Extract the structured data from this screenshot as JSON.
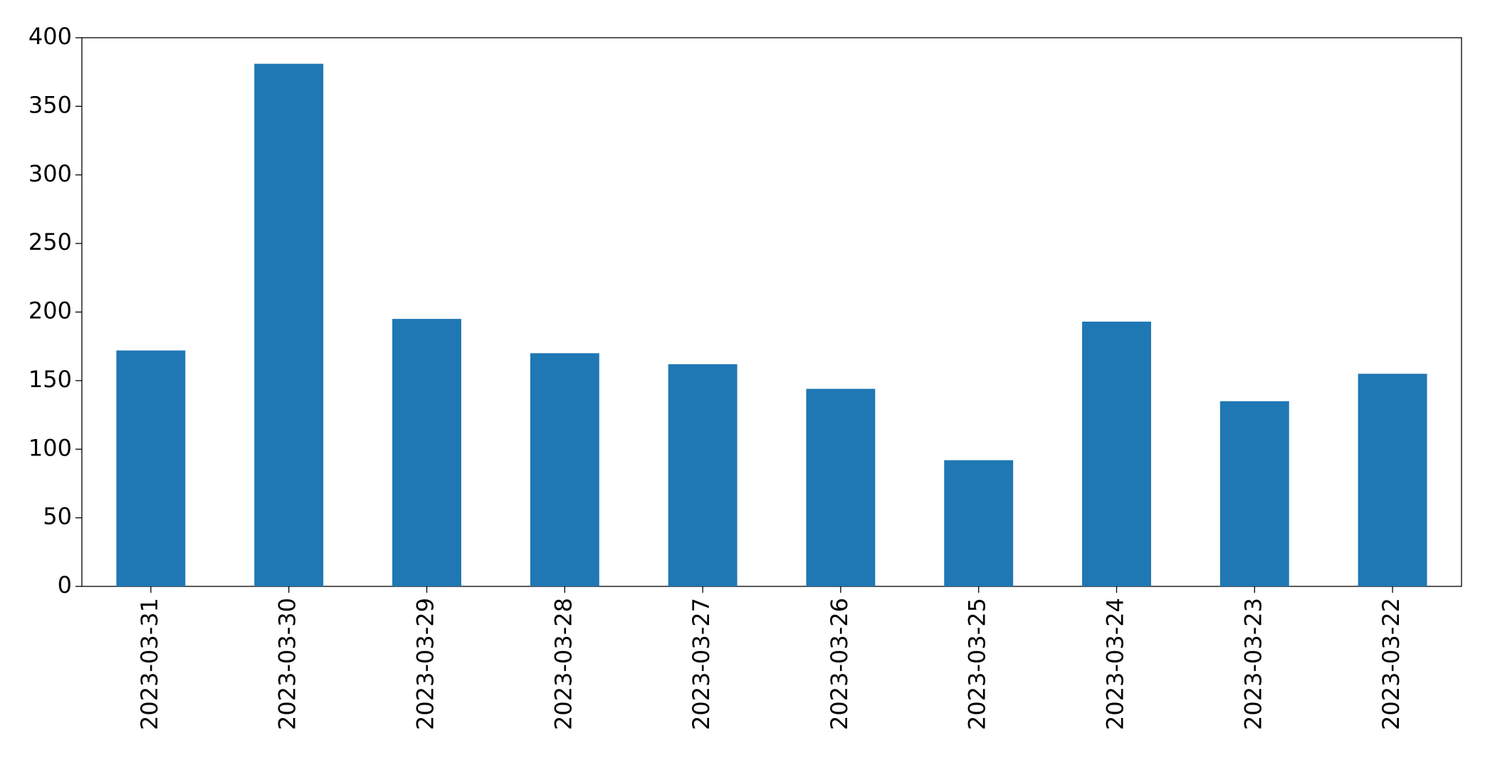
{
  "chart_data": {
    "type": "bar",
    "categories": [
      "2023-03-31",
      "2023-03-30",
      "2023-03-29",
      "2023-03-28",
      "2023-03-27",
      "2023-03-26",
      "2023-03-25",
      "2023-03-24",
      "2023-03-23",
      "2023-03-22"
    ],
    "values": [
      172,
      381,
      195,
      170,
      162,
      144,
      92,
      193,
      135,
      155
    ],
    "color": "#1f77b4",
    "ylim": [
      0,
      400
    ],
    "yticks": [
      0,
      50,
      100,
      150,
      200,
      250,
      300,
      350,
      400
    ],
    "grid": false
  }
}
